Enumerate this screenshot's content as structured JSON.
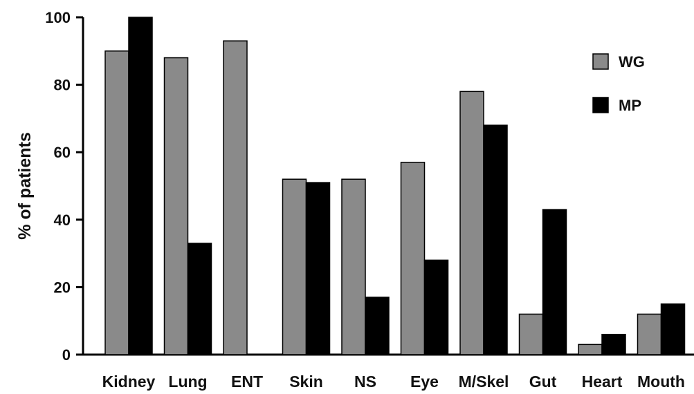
{
  "chart_data": {
    "type": "bar",
    "ylabel": "% of patients",
    "ylim": [
      0,
      100
    ],
    "yticks": [
      0,
      20,
      40,
      60,
      80,
      100
    ],
    "grid": false,
    "legend_position": "top-right",
    "categories": [
      "Kidney",
      "Lung",
      "ENT",
      "Skin",
      "NS",
      "Eye",
      "M/Skel",
      "Gut",
      "Heart",
      "Mouth"
    ],
    "series": [
      {
        "name": "WG",
        "color": "#8a8a8a",
        "values": [
          90,
          88,
          93,
          52,
          52,
          57,
          78,
          12,
          3,
          12
        ]
      },
      {
        "name": "MP",
        "color": "#000000",
        "values": [
          100,
          33,
          0,
          51,
          17,
          28,
          68,
          43,
          6,
          15
        ]
      }
    ]
  }
}
